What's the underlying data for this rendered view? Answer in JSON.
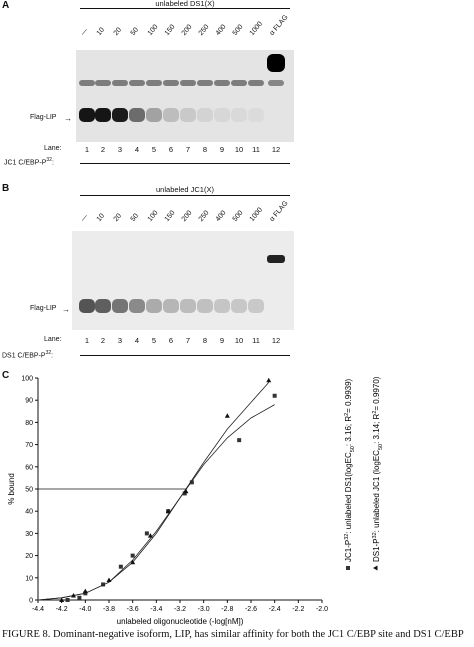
{
  "panel_a": {
    "letter": "A",
    "header": "unlabeled DS1(X)",
    "concentrations": [
      "—",
      "10",
      "20",
      "50",
      "100",
      "150",
      "200",
      "250",
      "400",
      "500",
      "1000",
      "α FLAG"
    ],
    "band_label": "Flag-LIP",
    "lane_label": "Lane:",
    "lanes": [
      "1",
      "2",
      "3",
      "4",
      "5",
      "6",
      "7",
      "8",
      "9",
      "10",
      "11",
      "12"
    ],
    "probe_label": "JC1 C/EBP-P",
    "probe_sup": "32",
    "probe_colon": ":",
    "lip_intensity": [
      0.95,
      0.95,
      0.92,
      0.55,
      0.3,
      0.18,
      0.12,
      0.08,
      0.06,
      0.05,
      0.04,
      0.0
    ],
    "upper_intensity": [
      0.55,
      0.55,
      0.55,
      0.55,
      0.55,
      0.55,
      0.55,
      0.55,
      0.55,
      0.55,
      0.55,
      0.5
    ],
    "supershift_intensity": 1.0
  },
  "panel_b": {
    "letter": "B",
    "header": "unlabeled JC1(X)",
    "concentrations": [
      "—",
      "10",
      "20",
      "50",
      "100",
      "150",
      "200",
      "250",
      "400",
      "500",
      "1000",
      "α FLAG"
    ],
    "band_label": "Flag-LIP",
    "lane_label": "Lane:",
    "lanes": [
      "1",
      "2",
      "3",
      "4",
      "5",
      "6",
      "7",
      "8",
      "9",
      "10",
      "11",
      "12"
    ],
    "probe_label": "DS1 C/EBP-P",
    "probe_sup": "32",
    "probe_colon": ":",
    "lip_intensity": [
      0.7,
      0.65,
      0.55,
      0.45,
      0.3,
      0.25,
      0.22,
      0.2,
      0.18,
      0.17,
      0.16,
      0.0
    ],
    "supershift_intensity": 0.85
  },
  "panel_c": {
    "letter": "C",
    "chart_data": {
      "type": "scatter",
      "xlabel": "unlabeled oligonucleotide (-log[nM])",
      "ylabel": "% bound",
      "xlim": [
        -4.4,
        -2.0
      ],
      "ylim": [
        0,
        100
      ],
      "xticks": [
        "-4.4",
        "-4.2",
        "-4.0",
        "-3.8",
        "-3.6",
        "-3.4",
        "-3.2",
        "-3.0",
        "-2.8",
        "-2.6",
        "-2.4",
        "-2.2",
        "-2.0"
      ],
      "yticks": [
        "0",
        "10",
        "20",
        "30",
        "40",
        "50",
        "60",
        "70",
        "80",
        "90",
        "100"
      ],
      "series": [
        {
          "name_pre": "JC1-P",
          "name_sup": "32",
          "name_post": ": unlabeled DS1(logEC",
          "name_sub": "50",
          "name_post2": ": 3.16; R",
          "name_sup2": "2",
          "name_post3": "= 0.9939)",
          "marker": "square",
          "points": [
            [
              -4.15,
              0
            ],
            [
              -4.05,
              1
            ],
            [
              -4.0,
              3
            ],
            [
              -3.85,
              7
            ],
            [
              -3.7,
              15
            ],
            [
              -3.6,
              20
            ],
            [
              -3.48,
              30
            ],
            [
              -3.3,
              40
            ],
            [
              -3.16,
              48
            ],
            [
              -3.1,
              53
            ],
            [
              -2.7,
              72
            ],
            [
              -2.4,
              92
            ]
          ],
          "curve": [
            [
              -4.4,
              0
            ],
            [
              -4.2,
              1
            ],
            [
              -4.0,
              3
            ],
            [
              -3.8,
              8
            ],
            [
              -3.6,
              18
            ],
            [
              -3.4,
              31
            ],
            [
              -3.2,
              46
            ],
            [
              -3.0,
              61
            ],
            [
              -2.8,
              73
            ],
            [
              -2.6,
              82
            ],
            [
              -2.4,
              88
            ]
          ]
        },
        {
          "name_pre": "DS1-P",
          "name_sup": "32",
          "name_post": ": unlabeled JC1 (logEC",
          "name_sub": "50",
          "name_post2": ": 3.14; R",
          "name_sup2": "2",
          "name_post3": "= 0.9970)",
          "marker": "triangle",
          "points": [
            [
              -4.2,
              0
            ],
            [
              -4.1,
              2
            ],
            [
              -4.0,
              4
            ],
            [
              -3.8,
              9
            ],
            [
              -3.6,
              17
            ],
            [
              -3.45,
              29
            ],
            [
              -3.3,
              40
            ],
            [
              -3.15,
              49
            ],
            [
              -2.8,
              83
            ],
            [
              -2.45,
              99
            ]
          ],
          "curve": [
            [
              -4.4,
              0
            ],
            [
              -4.2,
              1
            ],
            [
              -4.0,
              3
            ],
            [
              -3.8,
              8
            ],
            [
              -3.6,
              17
            ],
            [
              -3.4,
              30
            ],
            [
              -3.2,
              46
            ],
            [
              -3.0,
              62
            ],
            [
              -2.8,
              77
            ],
            [
              -2.6,
              89
            ],
            [
              -2.45,
              98
            ]
          ]
        }
      ],
      "ec50_guides": [
        -3.16,
        -3.14
      ],
      "guide_y": 50
    }
  },
  "caption": "FIGURE 8. Dominant-negative isoform, LIP, has similar affinity for both the JC1 C/EBP site and DS1 C/EBP"
}
